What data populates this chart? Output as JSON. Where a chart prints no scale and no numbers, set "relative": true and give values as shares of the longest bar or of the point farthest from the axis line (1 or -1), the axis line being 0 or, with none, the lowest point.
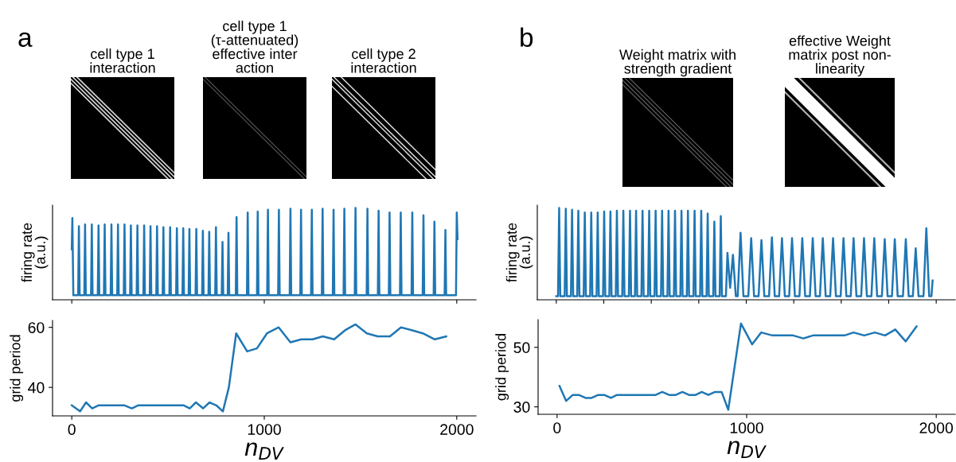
{
  "chart_data": [
    {
      "type": "other",
      "title": "cell type 1\ninteraction",
      "annotations": [
        "a"
      ]
    },
    {
      "type": "other",
      "title": "cell type 1\n(τ-attenuated)\neffective inter\naction"
    },
    {
      "type": "other",
      "title": "cell type 2\ninteraction"
    },
    {
      "type": "other",
      "title": "Weight matrix with\nstrength gradient",
      "annotations": [
        "b"
      ]
    },
    {
      "type": "other",
      "title": "effective Weight\nmatrix post non-\nlinearity"
    },
    {
      "type": "line",
      "relative": true,
      "ylabel": "firing rate\n(a.u.)",
      "tick_labels": false,
      "xlim": [
        -100,
        2100
      ],
      "xticks": [
        {
          "value": 0,
          "label": null
        },
        {
          "value": 1000,
          "label": null
        },
        {
          "value": 2000,
          "label": null
        }
      ],
      "grid": false,
      "legend": false,
      "series": [
        {
          "color": "#1f77b4",
          "x": [
            0,
            3,
            8,
            33,
            37,
            41,
            65,
            69,
            73,
            100,
            104,
            108,
            135,
            139,
            143,
            167,
            171,
            175,
            202,
            206,
            210,
            236,
            240,
            244,
            270,
            274,
            278,
            303,
            307,
            311,
            337,
            341,
            345,
            372,
            376,
            380,
            405,
            409,
            413,
            439,
            443,
            447,
            472,
            476,
            480,
            507,
            511,
            515,
            542,
            546,
            550,
            575,
            579,
            583,
            607,
            611,
            615,
            643,
            647,
            651,
            677,
            681,
            685,
            710,
            714,
            718,
            745,
            749,
            753,
            779,
            783,
            787,
            810,
            814,
            818,
            852,
            856,
            860,
            910,
            914,
            918,
            962,
            966,
            970,
            1015,
            1019,
            1023,
            1072,
            1076,
            1080,
            1132,
            1136,
            1140,
            1187,
            1191,
            1195,
            1243,
            1247,
            1251,
            1299,
            1303,
            1307,
            1356,
            1360,
            1364,
            1412,
            1416,
            1420,
            1470,
            1474,
            1478,
            1532,
            1536,
            1540,
            1590,
            1594,
            1598,
            1647,
            1651,
            1655,
            1705,
            1709,
            1713,
            1765,
            1769,
            1773,
            1823,
            1827,
            1831,
            1880,
            1884,
            1888,
            1937,
            1941,
            1945,
            1996,
            2000,
            2004
          ],
          "values": [
            0.55,
            0.89,
            0.05,
            0.05,
            0.8,
            0.05,
            0.05,
            0.82,
            0.05,
            0.05,
            0.82,
            0.05,
            0.05,
            0.81,
            0.05,
            0.05,
            0.82,
            0.05,
            0.05,
            0.82,
            0.05,
            0.05,
            0.82,
            0.05,
            0.05,
            0.82,
            0.05,
            0.05,
            0.81,
            0.05,
            0.05,
            0.81,
            0.05,
            0.05,
            0.81,
            0.05,
            0.05,
            0.8,
            0.05,
            0.05,
            0.8,
            0.05,
            0.05,
            0.79,
            0.05,
            0.05,
            0.79,
            0.05,
            0.05,
            0.78,
            0.05,
            0.05,
            0.78,
            0.05,
            0.05,
            0.77,
            0.05,
            0.05,
            0.77,
            0.05,
            0.05,
            0.75,
            0.05,
            0.05,
            0.74,
            0.05,
            0.05,
            0.79,
            0.05,
            0.05,
            0.63,
            0.05,
            0.05,
            0.73,
            0.05,
            0.05,
            0.9,
            0.05,
            0.05,
            0.95,
            0.05,
            0.05,
            0.96,
            0.05,
            0.05,
            0.98,
            0.05,
            0.05,
            0.98,
            0.05,
            0.05,
            0.99,
            0.05,
            0.05,
            0.98,
            0.05,
            0.05,
            0.98,
            0.05,
            0.05,
            0.99,
            0.05,
            0.05,
            0.98,
            0.05,
            0.05,
            0.99,
            0.05,
            0.05,
            1.0,
            0.05,
            0.05,
            0.99,
            0.05,
            0.05,
            0.97,
            0.05,
            0.05,
            0.95,
            0.05,
            0.05,
            0.95,
            0.05,
            0.05,
            0.95,
            0.05,
            0.05,
            0.92,
            0.05,
            0.05,
            0.85,
            0.05,
            0.05,
            0.76,
            0.05,
            0.05,
            0.95,
            0.66
          ]
        }
      ]
    },
    {
      "type": "line",
      "relative": true,
      "ylabel": "firing rate\n(a.u.)",
      "tick_labels": false,
      "xlim": [
        -100,
        2100
      ],
      "xticks": [
        {
          "value": 0,
          "label": null
        },
        {
          "value": 250,
          "label": null
        },
        {
          "value": 500,
          "label": null
        },
        {
          "value": 750,
          "label": null
        },
        {
          "value": 1000,
          "label": null
        },
        {
          "value": 1250,
          "label": null
        },
        {
          "value": 1500,
          "label": null
        },
        {
          "value": 1750,
          "label": null
        },
        {
          "value": 2000,
          "label": null
        }
      ],
      "grid": false,
      "legend": false,
      "series": [
        {
          "color": "#1f77b4",
          "x": [
            0,
            9,
            15,
            21,
            44,
            50,
            56,
            77,
            83,
            89,
            110,
            116,
            122,
            144,
            150,
            156,
            178,
            184,
            190,
            212,
            218,
            224,
            246,
            252,
            258,
            279,
            285,
            291,
            313,
            319,
            325,
            347,
            353,
            359,
            382,
            388,
            394,
            414,
            420,
            426,
            448,
            454,
            460,
            483,
            489,
            495,
            517,
            523,
            529,
            551,
            557,
            563,
            585,
            591,
            597,
            619,
            625,
            631,
            653,
            659,
            665,
            687,
            693,
            699,
            722,
            728,
            734,
            757,
            763,
            769,
            791,
            797,
            803,
            826,
            832,
            838,
            860,
            866,
            872,
            893,
            901,
            915,
            930,
            945,
            955,
            970,
            985,
            1011,
            1026,
            1041,
            1065,
            1080,
            1095,
            1120,
            1135,
            1150,
            1173,
            1188,
            1203,
            1226,
            1241,
            1256,
            1280,
            1295,
            1310,
            1335,
            1350,
            1365,
            1388,
            1403,
            1418,
            1442,
            1457,
            1472,
            1497,
            1512,
            1527,
            1550,
            1565,
            1580,
            1605,
            1620,
            1635,
            1659,
            1674,
            1689,
            1714,
            1729,
            1744,
            1767,
            1782,
            1797,
            1825,
            1840,
            1855,
            1877,
            1892,
            1907,
            1933,
            1948,
            1963,
            1975,
            1981
          ],
          "values": [
            0.04,
            0.04,
            1.0,
            0.04,
            0.04,
            0.99,
            0.04,
            0.04,
            0.98,
            0.04,
            0.04,
            0.97,
            0.04,
            0.04,
            0.95,
            0.04,
            0.04,
            0.95,
            0.04,
            0.04,
            0.95,
            0.04,
            0.04,
            0.96,
            0.04,
            0.04,
            0.96,
            0.04,
            0.04,
            0.97,
            0.04,
            0.04,
            0.97,
            0.04,
            0.04,
            0.97,
            0.04,
            0.04,
            0.97,
            0.04,
            0.04,
            0.97,
            0.04,
            0.04,
            0.97,
            0.04,
            0.04,
            0.97,
            0.04,
            0.04,
            0.97,
            0.04,
            0.04,
            0.97,
            0.04,
            0.04,
            0.97,
            0.04,
            0.04,
            0.97,
            0.04,
            0.04,
            0.97,
            0.04,
            0.04,
            0.97,
            0.04,
            0.04,
            0.97,
            0.04,
            0.04,
            0.94,
            0.04,
            0.04,
            0.85,
            0.04,
            0.04,
            0.91,
            0.04,
            0.04,
            0.51,
            0.13,
            0.49,
            0.04,
            0.04,
            0.73,
            0.04,
            0.04,
            0.67,
            0.04,
            0.04,
            0.65,
            0.04,
            0.04,
            0.68,
            0.04,
            0.04,
            0.67,
            0.04,
            0.04,
            0.67,
            0.04,
            0.04,
            0.67,
            0.04,
            0.04,
            0.67,
            0.04,
            0.04,
            0.67,
            0.04,
            0.04,
            0.67,
            0.04,
            0.04,
            0.67,
            0.04,
            0.04,
            0.67,
            0.04,
            0.04,
            0.67,
            0.04,
            0.04,
            0.67,
            0.04,
            0.04,
            0.66,
            0.04,
            0.04,
            0.66,
            0.04,
            0.04,
            0.66,
            0.04,
            0.04,
            0.56,
            0.04,
            0.04,
            0.78,
            0.04,
            0.04,
            0.21
          ]
        }
      ]
    },
    {
      "type": "line",
      "xlabel": "n$_{DV}$",
      "ylabel": "grid period",
      "xlim": [
        -100,
        2100
      ],
      "xticks": [
        0,
        1000,
        2000
      ],
      "ylim": [
        30.5,
        62.3
      ],
      "yticks": [
        40,
        60
      ],
      "grid": false,
      "legend": false,
      "series": [
        {
          "color": "#1f77b4",
          "x": [
            0,
            43,
            74,
            106,
            138,
            274,
            312,
            344,
            582,
            613,
            645,
            682,
            716,
            751,
            785,
            816,
            854,
            911,
            962,
            1014,
            1075,
            1136,
            1192,
            1251,
            1304,
            1363,
            1419,
            1474,
            1533,
            1589,
            1653,
            1710,
            1770,
            1824,
            1886,
            1945
          ],
          "values": [
            34,
            32,
            35,
            33,
            34,
            34,
            33,
            34,
            34,
            33,
            35,
            33,
            35,
            34,
            32,
            40,
            58,
            52,
            53,
            58,
            60,
            55,
            56,
            56,
            57,
            56,
            59,
            61,
            58,
            57,
            57,
            60,
            59,
            58,
            56,
            57
          ]
        }
      ]
    },
    {
      "type": "line",
      "xlabel": "n$_{DV}$",
      "ylabel": "grid period",
      "xlim": [
        -100,
        2100
      ],
      "xticks": [
        0,
        1000,
        2000
      ],
      "ylim": [
        27.5,
        59.3
      ],
      "yticks": [
        30,
        50
      ],
      "grid": false,
      "legend": false,
      "series": [
        {
          "color": "#1f77b4",
          "x": [
            13,
            48,
            83,
            115,
            150,
            182,
            217,
            249,
            284,
            316,
            520,
            555,
            591,
            626,
            661,
            696,
            731,
            763,
            798,
            833,
            868,
            903,
            970,
            1029,
            1077,
            1136,
            1245,
            1299,
            1350,
            1516,
            1564,
            1620,
            1676,
            1730,
            1784,
            1839,
            1896
          ],
          "values": [
            37,
            32,
            34,
            34,
            33,
            33,
            34,
            34,
            33,
            34,
            34,
            35,
            34,
            34,
            35,
            34,
            34,
            35,
            34,
            35,
            35,
            29,
            58,
            51,
            55,
            54,
            54,
            53,
            54,
            54,
            55,
            54,
            55,
            54,
            56,
            52,
            57
          ]
        }
      ]
    }
  ]
}
